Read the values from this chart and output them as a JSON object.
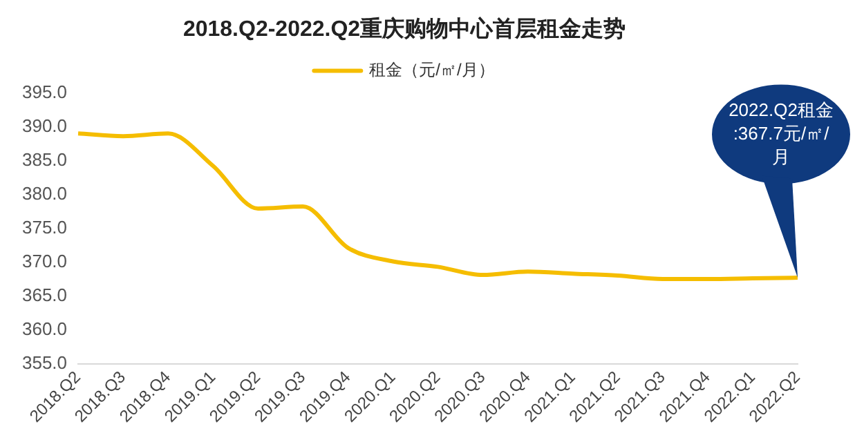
{
  "chart_data": {
    "type": "line",
    "title": "2018.Q2-2022.Q2重庆购物中心首层租金走势",
    "categories": [
      "2018.Q2",
      "2018.Q3",
      "2018.Q4",
      "2019.Q1",
      "2019.Q2",
      "2019.Q3",
      "2019.Q4",
      "2020.Q1",
      "2020.Q2",
      "2020.Q3",
      "2020.Q4",
      "2021.Q1",
      "2021.Q2",
      "2021.Q3",
      "2021.Q4",
      "2022.Q1",
      "2022.Q2"
    ],
    "series": [
      {
        "name": "租金（元/㎡/月）",
        "color": "#f5bd00",
        "values": [
          389.0,
          388.6,
          389.0,
          384.2,
          377.9,
          378.2,
          372.1,
          370.1,
          369.3,
          368.1,
          368.6,
          368.3,
          368.0,
          367.5,
          367.5,
          367.6,
          367.7
        ]
      }
    ],
    "ylim": [
      355,
      395
    ],
    "yticks": [
      {
        "value": 355,
        "label": "355.0"
      },
      {
        "value": 360,
        "label": "360.0"
      },
      {
        "value": 365,
        "label": "365.0"
      },
      {
        "value": 370,
        "label": "370.0"
      },
      {
        "value": 375,
        "label": "375.0"
      },
      {
        "value": 380,
        "label": "380.0"
      },
      {
        "value": 385,
        "label": "385.0"
      },
      {
        "value": 390,
        "label": "390.0"
      },
      {
        "value": 395,
        "label": "395.0"
      }
    ],
    "annotations": [
      {
        "text": "2022.Q2租金:367.7元/㎡/月",
        "x": "2022.Q2",
        "y": 367.7
      }
    ],
    "legend": "top",
    "grid": false,
    "marker": "none",
    "line_style": "solid"
  }
}
